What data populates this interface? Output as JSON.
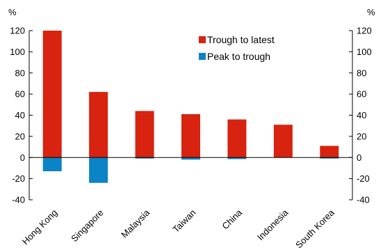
{
  "chart_data": {
    "type": "bar",
    "stacked": true,
    "categories": [
      "Hong Kong",
      "Singapore",
      "Malaysia",
      "Taiwan",
      "China",
      "Indonesia",
      "South Korea"
    ],
    "series": [
      {
        "name": "Trough to latest",
        "color": "#d7230f",
        "values": [
          120,
          62,
          44,
          41,
          36,
          31,
          11
        ]
      },
      {
        "name": "Peak to trough",
        "color": "#0a84c6",
        "values": [
          -13,
          -24,
          -1,
          -2,
          -1.5,
          0,
          -1
        ]
      }
    ],
    "yunit_left": "%",
    "yunit_right": "%",
    "ylim": [
      -40,
      120
    ],
    "yticks": [
      -40,
      -20,
      0,
      20,
      40,
      60,
      80,
      100,
      120
    ],
    "legend_placement": "top-center",
    "grid": false
  }
}
